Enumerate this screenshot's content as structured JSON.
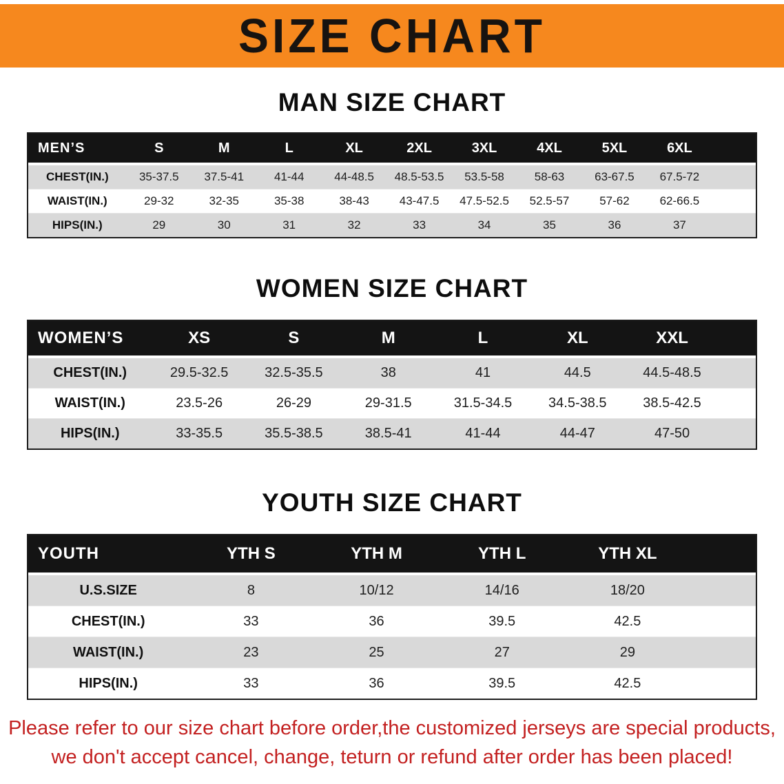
{
  "banner": {
    "title": "SIZE CHART"
  },
  "sections": [
    {
      "id": "men",
      "heading": "MAN SIZE CHART",
      "table": {
        "header": [
          "MEN’S",
          "S",
          "M",
          "L",
          "XL",
          "2XL",
          "3XL",
          "4XL",
          "5XL",
          "6XL"
        ],
        "rows": [
          {
            "label": "CHEST(IN.)",
            "values": [
              "35-37.5",
              "37.5-41",
              "41-44",
              "44-48.5",
              "48.5-53.5",
              "53.5-58",
              "58-63",
              "63-67.5",
              "67.5-72"
            ]
          },
          {
            "label": "WAIST(IN.)",
            "values": [
              "29-32",
              "32-35",
              "35-38",
              "38-43",
              "43-47.5",
              "47.5-52.5",
              "52.5-57",
              "57-62",
              "62-66.5"
            ]
          },
          {
            "label": "HIPS(IN.)",
            "values": [
              "29",
              "30",
              "31",
              "32",
              "33",
              "34",
              "35",
              "36",
              "37"
            ]
          }
        ]
      }
    },
    {
      "id": "women",
      "heading": "WOMEN SIZE CHART",
      "table": {
        "header": [
          "WOMEN’S",
          "XS",
          "S",
          "M",
          "L",
          "XL",
          "XXL"
        ],
        "rows": [
          {
            "label": "CHEST(IN.)",
            "values": [
              "29.5-32.5",
              "32.5-35.5",
              "38",
              "41",
              "44.5",
              "44.5-48.5"
            ]
          },
          {
            "label": "WAIST(IN.)",
            "values": [
              "23.5-26",
              "26-29",
              "29-31.5",
              "31.5-34.5",
              "34.5-38.5",
              "38.5-42.5"
            ]
          },
          {
            "label": "HIPS(IN.)",
            "values": [
              "33-35.5",
              "35.5-38.5",
              "38.5-41",
              "41-44",
              "44-47",
              "47-50"
            ]
          }
        ]
      }
    },
    {
      "id": "youth",
      "heading": "YOUTH SIZE CHART",
      "table": {
        "header": [
          "YOUTH",
          "YTH S",
          "YTH M",
          "YTH L",
          "YTH XL"
        ],
        "rows": [
          {
            "label": "U.S.SIZE",
            "values": [
              "8",
              "10/12",
              "14/16",
              "18/20"
            ]
          },
          {
            "label": "CHEST(IN.)",
            "values": [
              "33",
              "36",
              "39.5",
              "42.5"
            ]
          },
          {
            "label": "WAIST(IN.)",
            "values": [
              "23",
              "25",
              "27",
              "29"
            ]
          },
          {
            "label": "HIPS(IN.)",
            "values": [
              "33",
              "36",
              "39.5",
              "42.5"
            ]
          }
        ]
      }
    }
  ],
  "notice": {
    "lines": [
      "Please refer to our size chart before order,the customized jerseys are special products,",
      "we don't accept cancel, change, teturn or refund after order has been placed!"
    ]
  },
  "colors": {
    "banner_bg": "#f6881e",
    "table_header_bg": "#141414",
    "row_stripe": "#d9d9d9",
    "notice_text": "#c32020"
  }
}
